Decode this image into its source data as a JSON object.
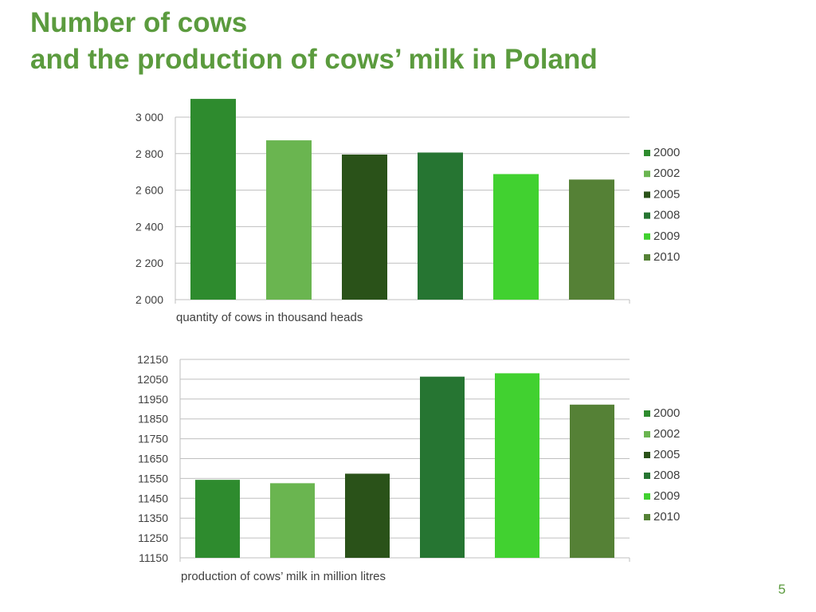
{
  "slide": {
    "title_line1": "Number of cows",
    "title_line2": "and the production of cows’ milk in Poland",
    "page_number": "5"
  },
  "colors": {
    "title": "#5b9b3e",
    "grid": "#bfbfbf",
    "axis_text": "#404040",
    "series": [
      "#2e8b2e",
      "#6ab550",
      "#2a5219",
      "#267532",
      "#41d130",
      "#558136"
    ]
  },
  "chart_data": [
    {
      "type": "bar",
      "title": "",
      "xlabel": "quantity of cows in thousand heads",
      "ylabel": "",
      "categories": [
        "2000",
        "2002",
        "2005",
        "2008",
        "2009",
        "2010"
      ],
      "values": [
        3100,
        2873,
        2795,
        2806,
        2688,
        2658
      ],
      "ylim": [
        2000,
        3000
      ],
      "yticks": [
        2000,
        2200,
        2400,
        2600,
        2800,
        3000
      ],
      "ytick_labels": [
        "2 000",
        "2 200",
        "2 400",
        "2 600",
        "2 800",
        "3 000"
      ],
      "grid": true,
      "legend": {
        "position": "right",
        "entries": [
          "2000",
          "2002",
          "2005",
          "2008",
          "2009",
          "2010"
        ]
      }
    },
    {
      "type": "bar",
      "title": "",
      "xlabel": "production of cows’ milk in million litres",
      "ylabel": "",
      "categories": [
        "2000",
        "2002",
        "2005",
        "2008",
        "2009",
        "2010"
      ],
      "values": [
        11543,
        11526,
        11574,
        12063,
        12080,
        11922
      ],
      "ylim": [
        11150,
        12150
      ],
      "yticks": [
        11150,
        11250,
        11350,
        11450,
        11550,
        11650,
        11750,
        11850,
        11950,
        12050,
        12150
      ],
      "ytick_labels": [
        "11150",
        "11250",
        "11350",
        "11450",
        "11550",
        "11650",
        "11750",
        "11850",
        "11950",
        "12050",
        "12150"
      ],
      "grid": true,
      "legend": {
        "position": "right",
        "entries": [
          "2000",
          "2002",
          "2005",
          "2008",
          "2009",
          "2010"
        ]
      }
    }
  ]
}
